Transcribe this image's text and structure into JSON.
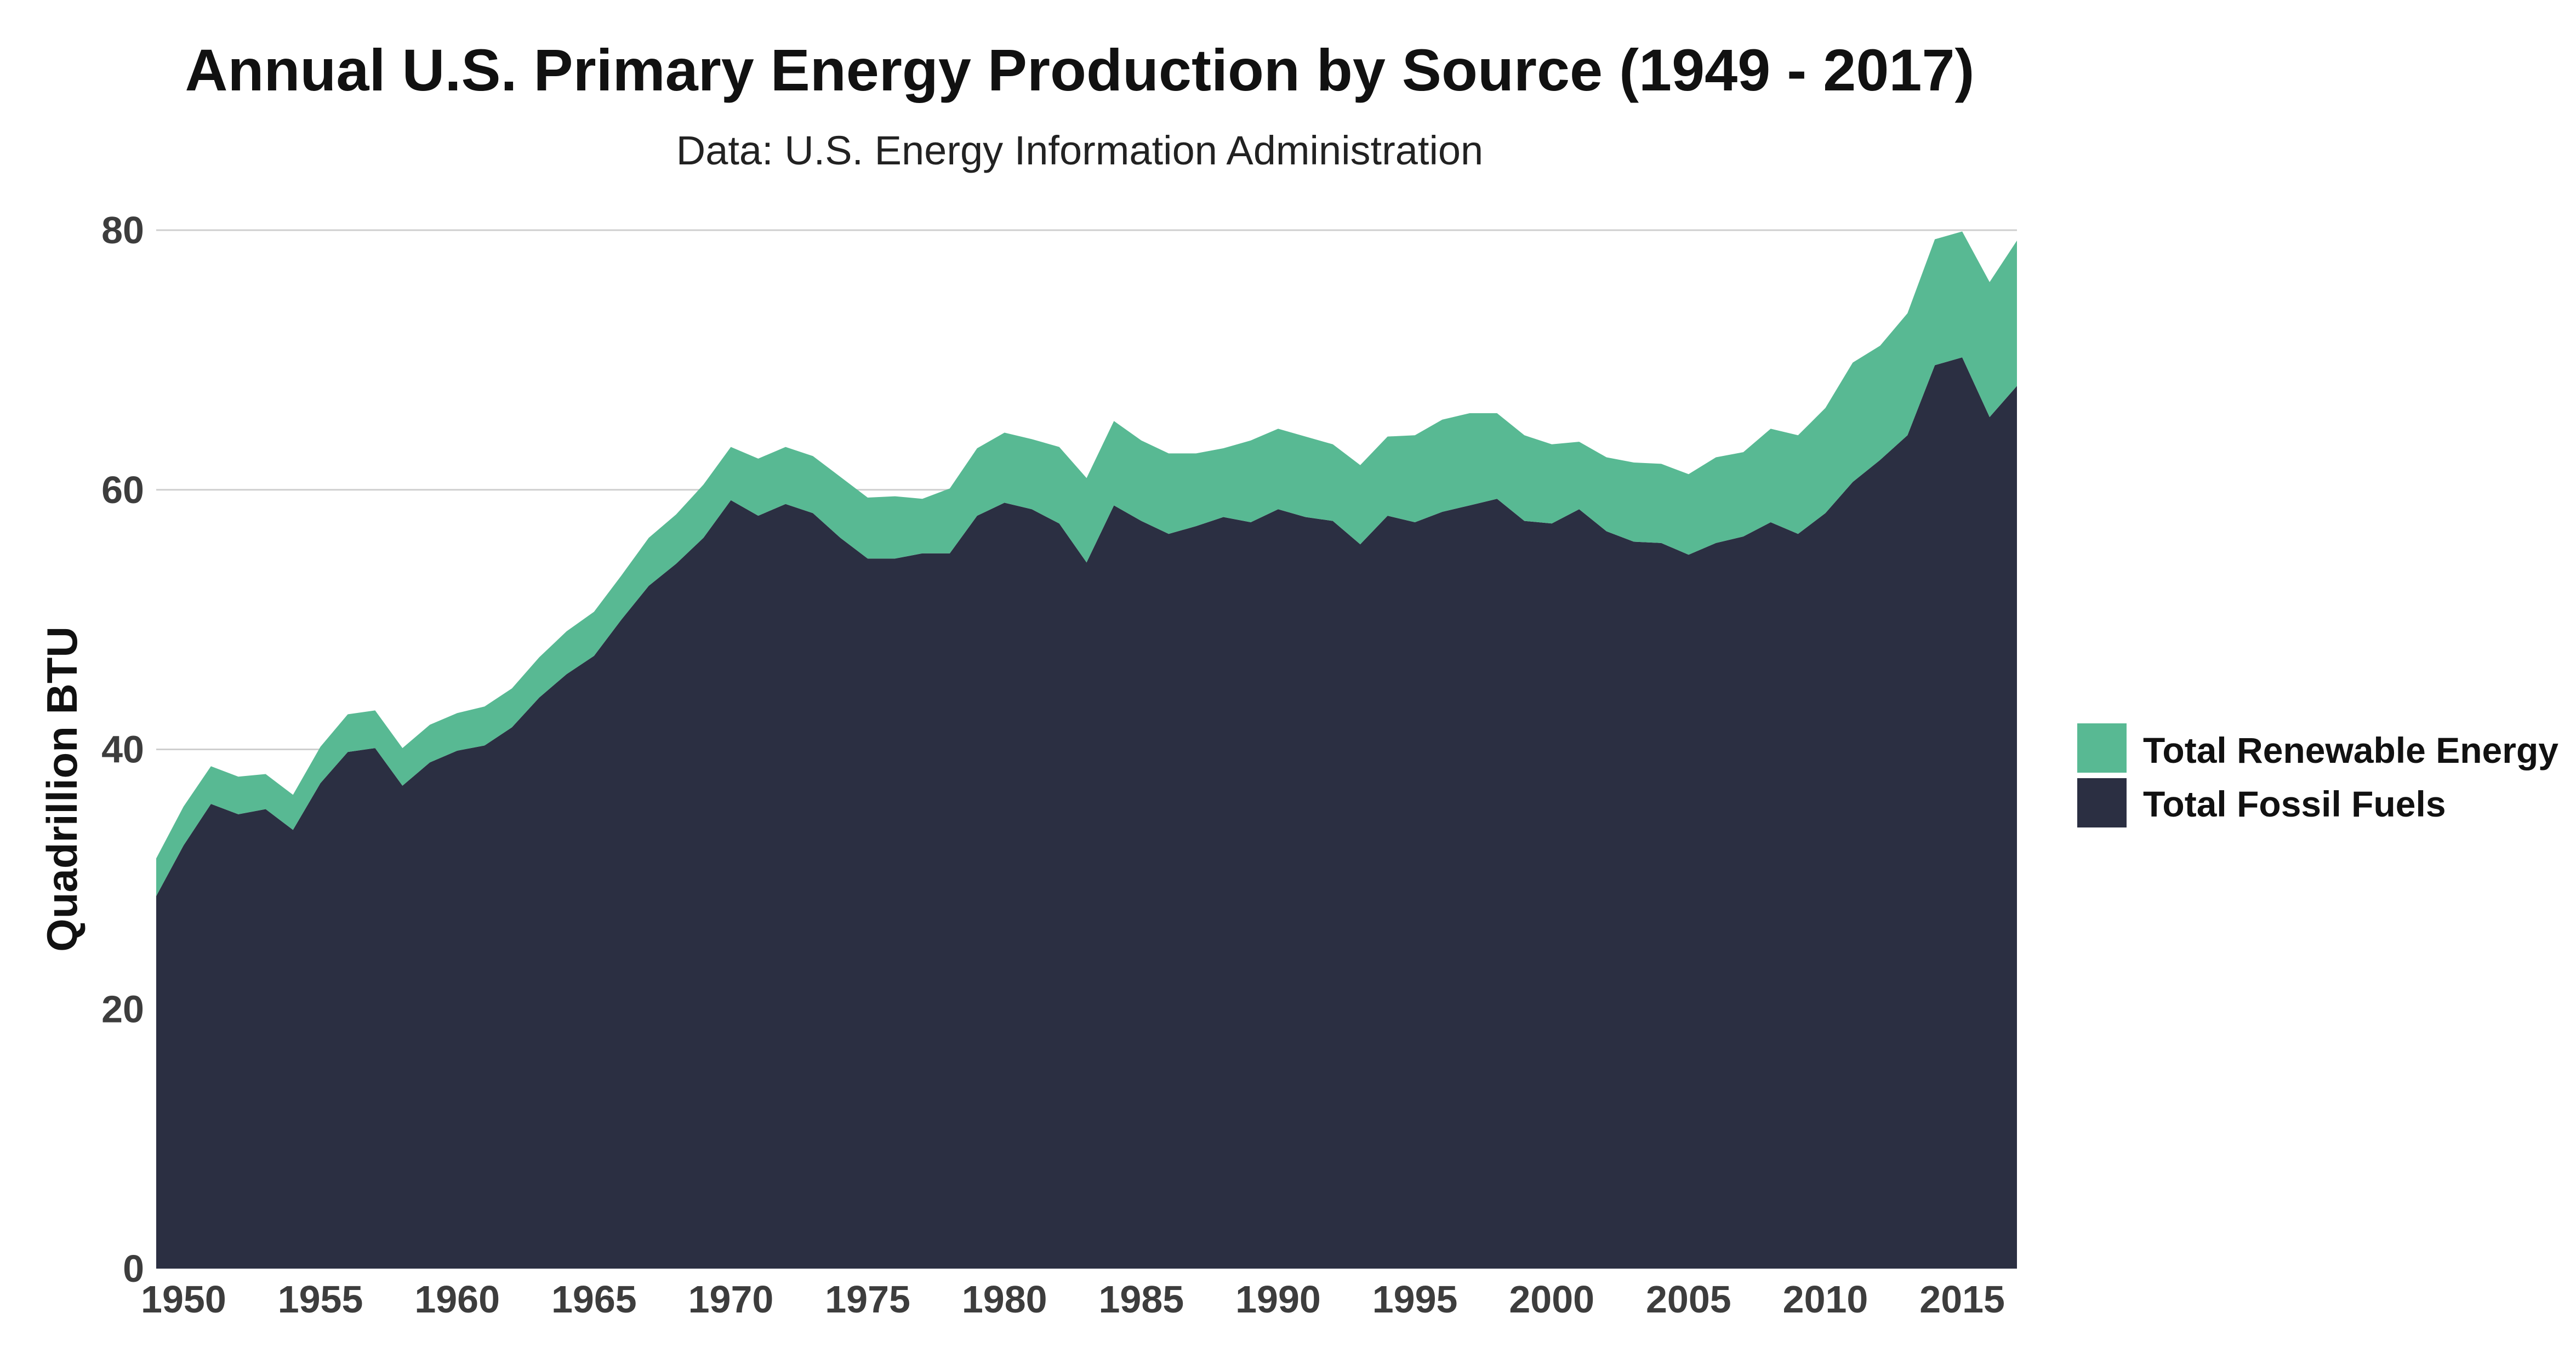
{
  "chart_data": {
    "type": "area",
    "stacked": true,
    "title": "Annual U.S. Primary Energy Production by Source (1949 - 2017)",
    "subtitle": "Data: U.S. Energy Information Administration",
    "xlabel": "",
    "ylabel": "Quadrillion BTU",
    "xlim": [
      1949,
      2017
    ],
    "ylim": [
      0,
      80
    ],
    "yticks": [
      0,
      20,
      40,
      60,
      80
    ],
    "xticks": [
      1950,
      1955,
      1960,
      1965,
      1970,
      1975,
      1980,
      1985,
      1990,
      1995,
      2000,
      2005,
      2010,
      2015
    ],
    "grid": "horizontal",
    "legend": "right",
    "x": [
      1949,
      1950,
      1951,
      1952,
      1953,
      1954,
      1955,
      1956,
      1957,
      1958,
      1959,
      1960,
      1961,
      1962,
      1963,
      1964,
      1965,
      1966,
      1967,
      1968,
      1969,
      1970,
      1971,
      1972,
      1973,
      1974,
      1975,
      1976,
      1977,
      1978,
      1979,
      1980,
      1981,
      1982,
      1983,
      1984,
      1985,
      1986,
      1987,
      1988,
      1989,
      1990,
      1991,
      1992,
      1993,
      1994,
      1995,
      1996,
      1997,
      1998,
      1999,
      2000,
      2001,
      2002,
      2003,
      2004,
      2005,
      2006,
      2007,
      2008,
      2009,
      2010,
      2011,
      2012,
      2013,
      2014,
      2015,
      2016,
      2017
    ],
    "series": [
      {
        "name": "Total Fossil Fuels",
        "color": "#2b2f42",
        "values": [
          28.7,
          32.6,
          35.8,
          35.0,
          35.4,
          33.8,
          37.4,
          39.8,
          40.1,
          37.2,
          39.0,
          39.9,
          40.3,
          41.7,
          44.0,
          45.8,
          47.2,
          50.0,
          52.6,
          54.3,
          56.3,
          59.2,
          58.0,
          58.9,
          58.2,
          56.3,
          54.7,
          54.7,
          55.1,
          55.1,
          58.0,
          59.0,
          58.5,
          57.4,
          54.4,
          58.8,
          57.6,
          56.6,
          57.2,
          57.9,
          57.5,
          58.5,
          57.9,
          57.6,
          55.8,
          58.0,
          57.5,
          58.3,
          58.8,
          59.3,
          57.6,
          57.4,
          58.5,
          56.8,
          56.0,
          55.9,
          55.0,
          55.9,
          56.4,
          57.5,
          56.6,
          58.2,
          60.6,
          62.3,
          64.2,
          69.6,
          70.2,
          65.6,
          68.0
        ]
      },
      {
        "name": "Total Renewable Energy",
        "color": "#58b993",
        "values": [
          2.9,
          3.0,
          2.9,
          2.9,
          2.7,
          2.7,
          2.8,
          2.9,
          2.9,
          2.9,
          2.9,
          2.9,
          3.0,
          3.0,
          3.1,
          3.3,
          3.4,
          3.4,
          3.7,
          3.8,
          4.1,
          4.1,
          4.4,
          4.4,
          4.4,
          4.7,
          4.7,
          4.8,
          4.2,
          5.0,
          5.2,
          5.4,
          5.4,
          5.9,
          6.5,
          6.5,
          6.2,
          6.2,
          5.6,
          5.3,
          6.3,
          6.2,
          6.2,
          5.9,
          6.1,
          6.1,
          6.7,
          7.1,
          7.1,
          6.6,
          6.6,
          6.1,
          5.2,
          5.7,
          6.1,
          6.1,
          6.2,
          6.6,
          6.5,
          7.2,
          7.6,
          8.1,
          9.2,
          8.8,
          9.4,
          9.7,
          9.7,
          10.4,
          11.2
        ]
      }
    ]
  }
}
